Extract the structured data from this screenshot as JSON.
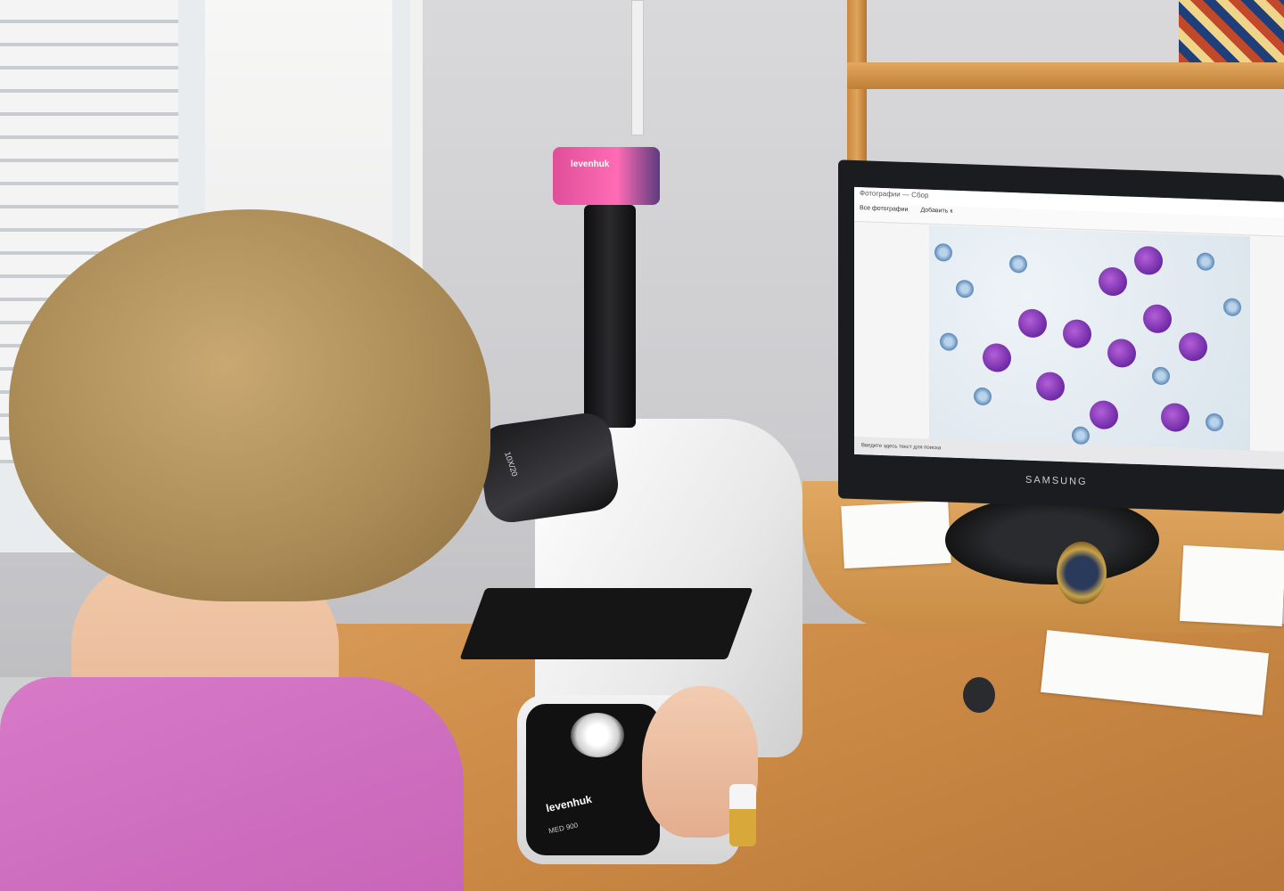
{
  "scene": {
    "description_alt": "Lab technician viewing blood smear through microscope with camera feeding monitor"
  },
  "camera": {
    "brand_label": "levenhuk"
  },
  "eyepiece": {
    "label": "10X/20"
  },
  "microscope_base": {
    "brand_label": "levenhuk",
    "model_label": "MED 900"
  },
  "monitor": {
    "brand_label": "SAMSUNG",
    "app_title": "Фотографии — Сбор",
    "toolbar_left": "Все фотографии",
    "toolbar_add": "Добавить к",
    "taskbar_search": "Введите здесь текст для поиска"
  },
  "colors": {
    "camera": "#e04e9a",
    "shirt": "#d77ac8",
    "wood": "#d89a58",
    "wbc": "#6d2aa5",
    "rbc": "#4f7fb3"
  }
}
